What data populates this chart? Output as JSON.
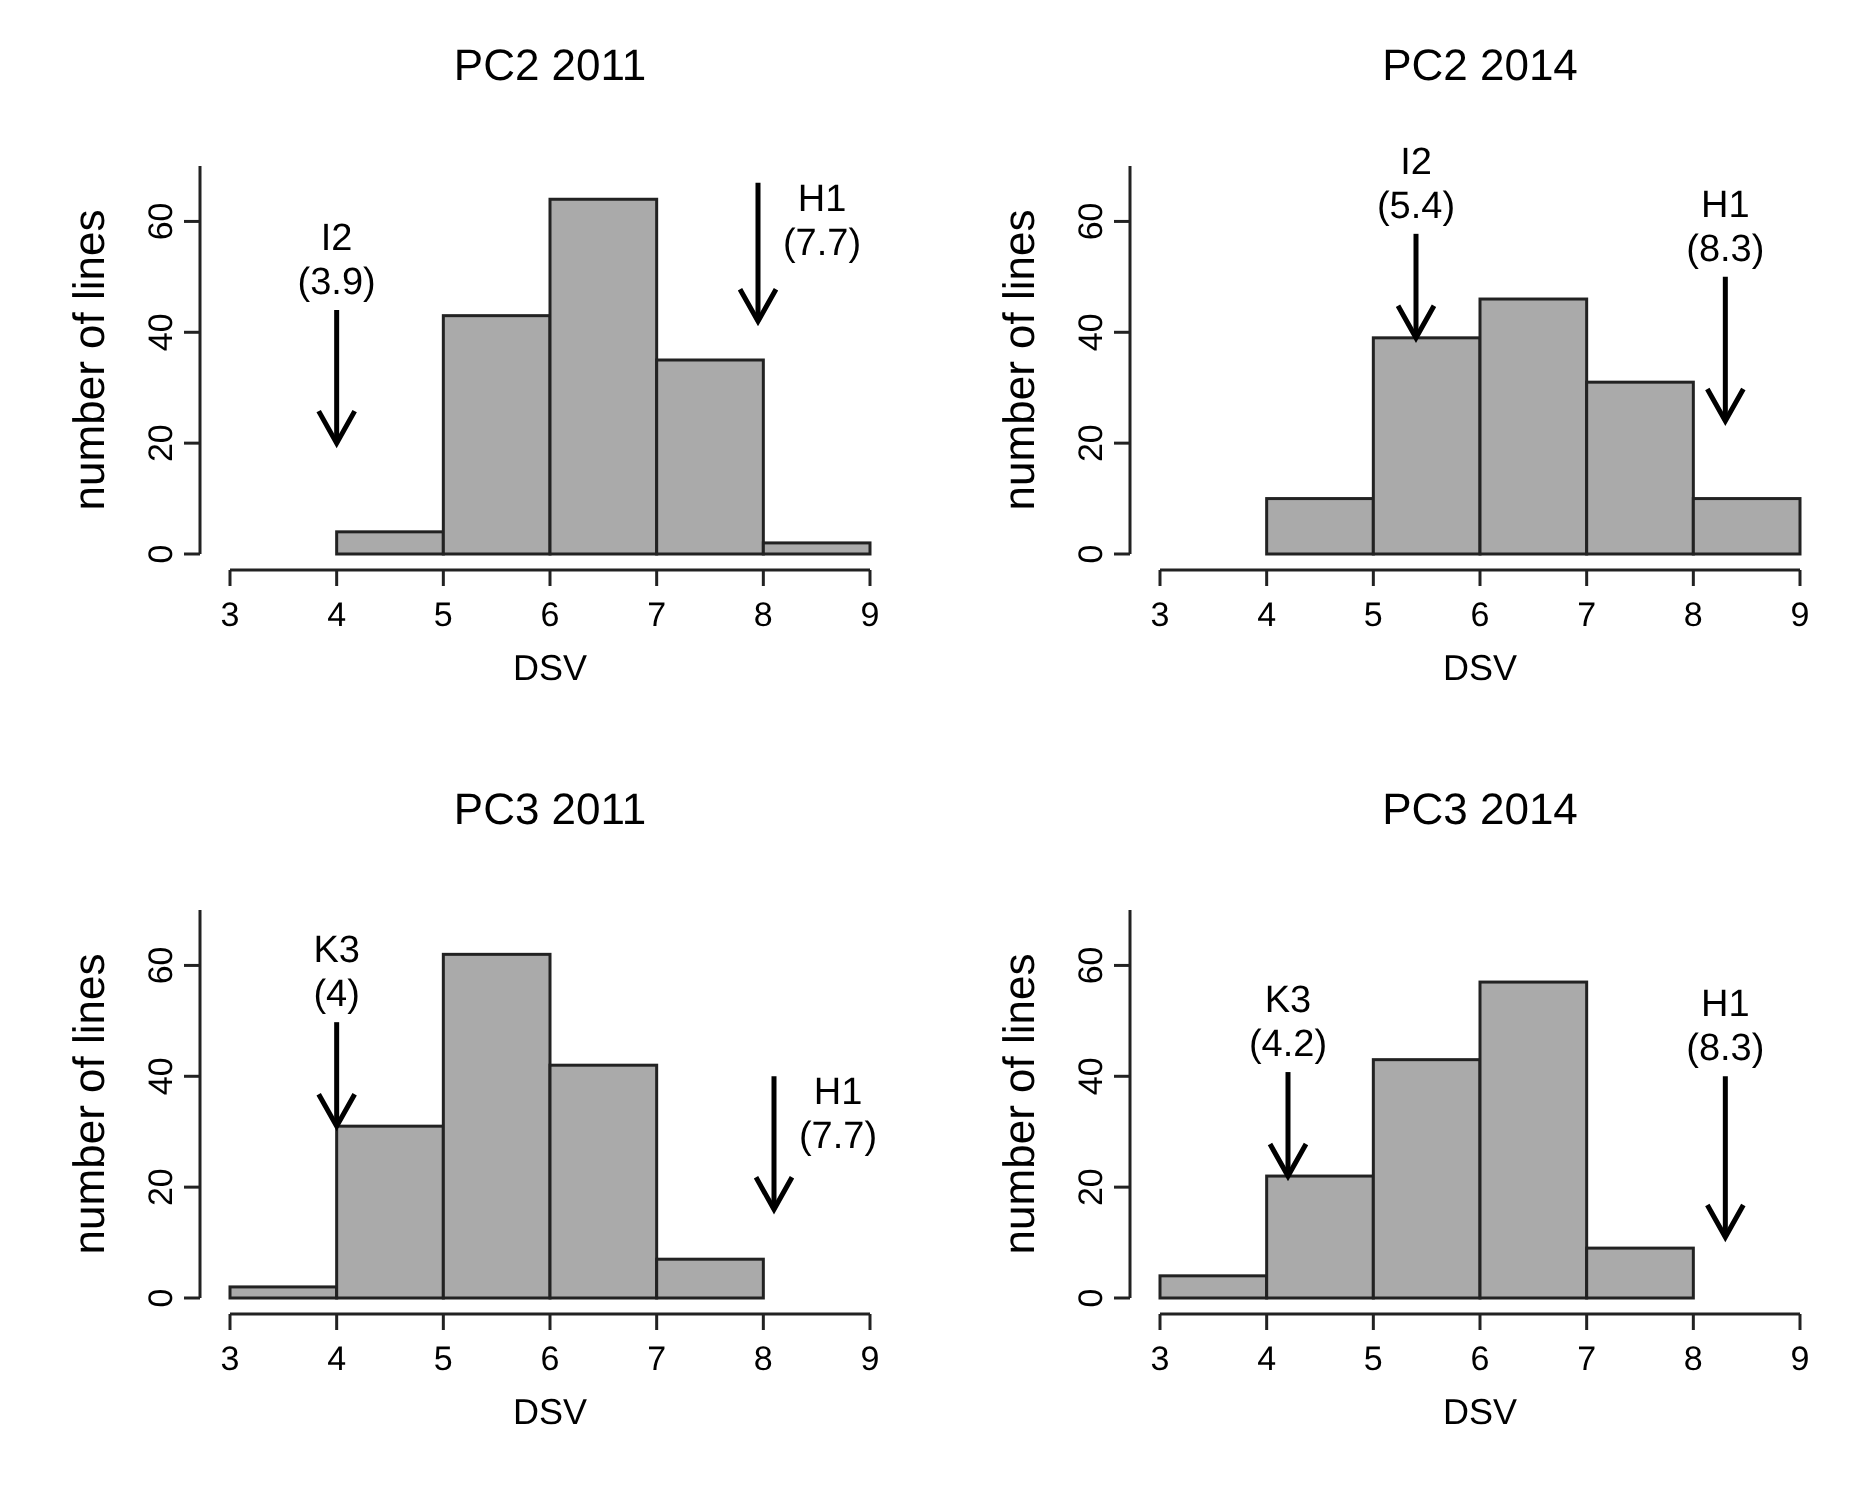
{
  "chart_data": [
    {
      "type": "histogram",
      "title": "PC2 2011",
      "xlabel": "DSV",
      "ylabel": "number of lines",
      "bins": [
        3,
        4,
        5,
        6,
        7,
        8,
        9
      ],
      "values": [
        0,
        4,
        43,
        64,
        35,
        2
      ],
      "color": "#aaaaaa",
      "xlim": [
        3,
        9
      ],
      "xticks": [
        3,
        4,
        5,
        6,
        7,
        8,
        9
      ],
      "ylim": [
        0,
        70
      ],
      "yticks": [
        0,
        20,
        40,
        60
      ],
      "annotations": [
        "I2\n(3.9)",
        "H1\n(7.7)"
      ]
    },
    {
      "type": "histogram",
      "title": "PC2 2014",
      "xlabel": "DSV",
      "ylabel": "number of lines",
      "bins": [
        3,
        4,
        5,
        6,
        7,
        8,
        9
      ],
      "values": [
        0,
        10,
        39,
        46,
        31,
        10
      ],
      "color": "#aaaaaa",
      "xlim": [
        3,
        9
      ],
      "xticks": [
        3,
        4,
        5,
        6,
        7,
        8,
        9
      ],
      "ylim": [
        0,
        70
      ],
      "yticks": [
        0,
        20,
        40,
        60
      ],
      "annotations": [
        {
          "text": "I2\n(5.4)",
          "x": 5.4,
          "y": 39
        },
        "H1\n(8.3)"
      ]
    },
    {
      "type": "histogram",
      "title": "PC3 2011",
      "xlabel": "DSV",
      "ylabel": "number of lines",
      "bins": [
        3,
        4,
        5,
        6,
        7,
        8,
        9
      ],
      "values": [
        2,
        31,
        62,
        42,
        7,
        0
      ],
      "color": "#aaaaaa",
      "xlim": [
        3,
        9
      ],
      "xticks": [
        3,
        4,
        5,
        6,
        7,
        8,
        9
      ],
      "ylim": [
        0,
        70
      ],
      "yticks": [
        0,
        20,
        40,
        60
      ],
      "annotations": [
        {
          "text": "K3\n(4)",
          "x": 4,
          "y": 31
        },
        "H1\n(7.7)"
      ]
    },
    {
      "type": "histogram",
      "title": "PC3 2014",
      "xlabel": "DSV",
      "ylabel": "number of lines",
      "bins": [
        3,
        4,
        5,
        6,
        7,
        8,
        9
      ],
      "values": [
        4,
        22,
        43,
        57,
        9,
        0
      ],
      "color": "#aaaaaa",
      "xlim": [
        3,
        9
      ],
      "xticks": [
        3,
        4,
        5,
        6,
        7,
        8,
        9
      ],
      "ylim": [
        0,
        70
      ],
      "yticks": [
        0,
        20,
        40,
        60
      ],
      "annotations": [
        {
          "text": "K3\n(4.2)",
          "x": 4.2,
          "y": 22
        },
        "H1\n(8.3)"
      ]
    }
  ]
}
